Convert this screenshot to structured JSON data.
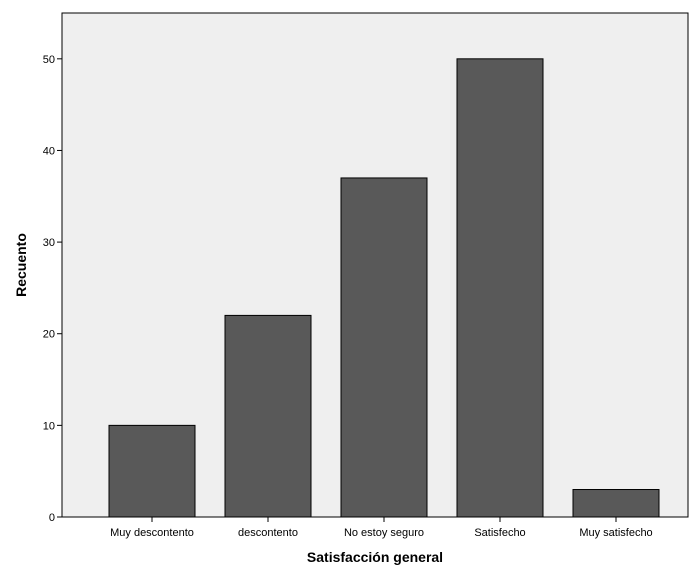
{
  "chart_data": {
    "type": "bar",
    "categories": [
      "Muy descontento",
      "descontento",
      "No estoy seguro",
      "Satisfecho",
      "Muy satisfecho"
    ],
    "values": [
      10,
      22,
      37,
      50,
      3
    ],
    "xlabel": "Satisfacción general",
    "ylabel": "Recuento",
    "ylim": [
      0,
      55
    ],
    "yticks": [
      0,
      10,
      20,
      30,
      40,
      50
    ],
    "grid": false,
    "colors": {
      "plot_background": "#efefef",
      "bar_fill": "#595959",
      "bar_stroke": "#000000",
      "axis": "#000000"
    }
  }
}
